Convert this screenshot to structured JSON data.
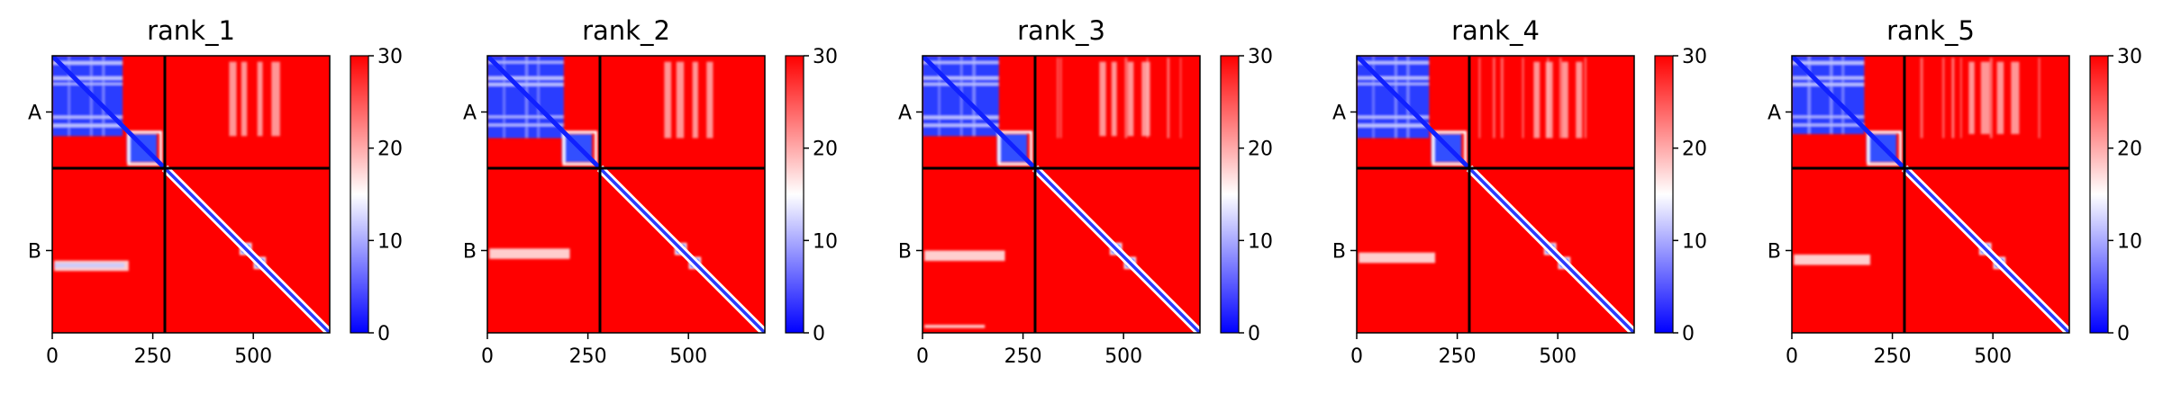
{
  "chart_data": {
    "type": "heatmap",
    "description_kind": "predicted aligned error matrices",
    "colormap": {
      "low": "#0000ff",
      "mid": "#ffffff",
      "high": "#ff0000"
    },
    "color_range": [
      0,
      30
    ],
    "colorbar_ticks": [
      "0",
      "10",
      "20",
      "30"
    ],
    "matrix_size": 690,
    "chain_boundary": 280,
    "x_ticks": [
      {
        "value": 0,
        "label": "0"
      },
      {
        "value": 250,
        "label": "250"
      },
      {
        "value": 500,
        "label": "500"
      }
    ],
    "y_ticks": [
      {
        "value": 140,
        "label": "A"
      },
      {
        "value": 485,
        "label": "B"
      }
    ],
    "panels": [
      {
        "title": "rank_1",
        "variant": 1
      },
      {
        "title": "rank_2",
        "variant": 2
      },
      {
        "title": "rank_3",
        "variant": 3
      },
      {
        "title": "rank_4",
        "variant": 4
      },
      {
        "title": "rank_5",
        "variant": 5
      }
    ]
  }
}
